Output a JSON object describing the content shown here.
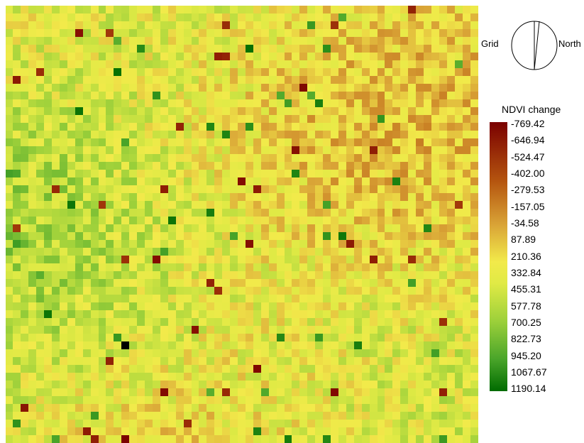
{
  "compass": {
    "grid_label": "Grid",
    "north_label": "North",
    "icon": "north-arrow-icon"
  },
  "legend": {
    "title": "NDVI change",
    "labels": [
      "-769.42",
      "-646.94",
      "-524.47",
      "-402.00",
      "-279.53",
      "-157.05",
      "-34.58",
      "87.89",
      "210.36",
      "332.84",
      "455.31",
      "577.78",
      "700.25",
      "822.73",
      "945.20",
      "1067.67",
      "1190.14"
    ],
    "colors": {
      "low": "#7a0000",
      "mid": "#f2ea4a",
      "high": "#006b00"
    }
  },
  "map": {
    "type": "heatmap",
    "value_range": [
      -769.42,
      1190.14
    ],
    "description_colors": [
      "#7a0000",
      "#b5550f",
      "#d9a336",
      "#f2ea4a",
      "#9cd03a",
      "#006b00"
    ]
  }
}
